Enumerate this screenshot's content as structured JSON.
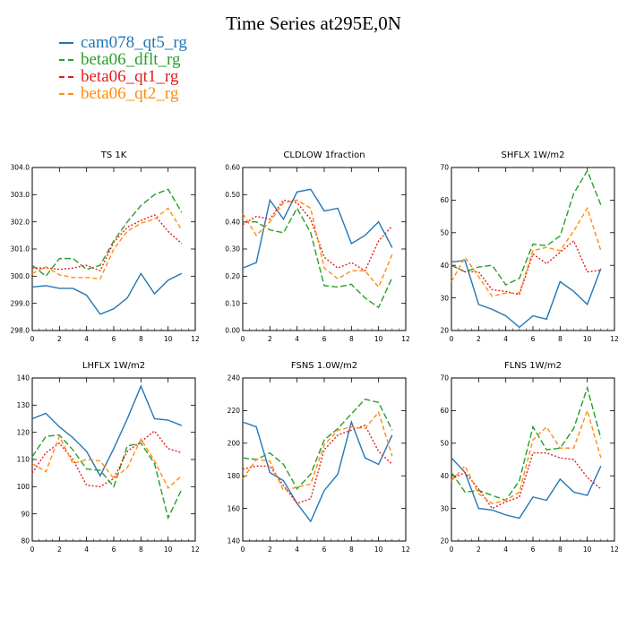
{
  "title": "Time Series at295E,0N",
  "legend": [
    {
      "label": "cam078_qt5_rg",
      "color": "#2277b5",
      "dash": ""
    },
    {
      "label": "beta06_dflt_rg",
      "color": "#2a9e2a",
      "dash": "7,3"
    },
    {
      "label": "beta06_qt1_rg",
      "color": "#e02020",
      "dash": "2,2"
    },
    {
      "label": "beta06_qt2_rg",
      "color": "#ff8c10",
      "dash": "5,3"
    }
  ],
  "chart_data": [
    {
      "type": "line",
      "title": "TS   1K",
      "x": [
        0,
        1,
        2,
        3,
        4,
        5,
        6,
        7,
        8,
        9,
        10,
        11
      ],
      "xlim": [
        0,
        12
      ],
      "xticks": [
        0,
        2,
        4,
        6,
        8,
        10,
        12
      ],
      "ylim": [
        298,
        304
      ],
      "yticks": [
        298.0,
        299.0,
        300.0,
        301.0,
        302.0,
        303.0,
        304.0
      ],
      "ytick_decimals": 1,
      "series": [
        {
          "name": "cam078_qt5_rg",
          "values": [
            299.6,
            299.65,
            299.55,
            299.55,
            299.3,
            298.6,
            298.8,
            299.2,
            300.1,
            299.35,
            299.85,
            300.1
          ]
        },
        {
          "name": "beta06_dflt_rg",
          "values": [
            300.4,
            300.0,
            300.65,
            300.65,
            300.25,
            300.4,
            301.3,
            302.0,
            302.6,
            303.0,
            303.2,
            302.35
          ]
        },
        {
          "name": "beta06_qt1_rg",
          "values": [
            300.3,
            300.3,
            300.25,
            300.3,
            300.4,
            300.2,
            301.25,
            301.8,
            302.05,
            302.25,
            301.65,
            301.2
          ]
        },
        {
          "name": "beta06_qt2_rg",
          "values": [
            300.1,
            300.35,
            300.05,
            299.95,
            299.95,
            299.9,
            301.0,
            301.65,
            301.95,
            302.1,
            302.5,
            301.7
          ]
        }
      ]
    },
    {
      "type": "line",
      "title": "CLDLOW   1fraction",
      "x": [
        0,
        1,
        2,
        3,
        4,
        5,
        6,
        7,
        8,
        9,
        10,
        11
      ],
      "xlim": [
        0,
        12
      ],
      "xticks": [
        0,
        2,
        4,
        6,
        8,
        10,
        12
      ],
      "ylim": [
        0,
        0.6
      ],
      "yticks": [
        0.0,
        0.1,
        0.2,
        0.3,
        0.4,
        0.5,
        0.6
      ],
      "ytick_decimals": 2,
      "series": [
        {
          "name": "cam078_qt5_rg",
          "values": [
            0.23,
            0.25,
            0.48,
            0.41,
            0.51,
            0.52,
            0.44,
            0.45,
            0.32,
            0.35,
            0.4,
            0.305
          ]
        },
        {
          "name": "beta06_dflt_rg",
          "values": [
            0.4,
            0.4,
            0.37,
            0.36,
            0.45,
            0.36,
            0.165,
            0.16,
            0.17,
            0.12,
            0.085,
            0.195
          ]
        },
        {
          "name": "beta06_qt1_rg",
          "values": [
            0.39,
            0.42,
            0.41,
            0.48,
            0.47,
            0.41,
            0.27,
            0.23,
            0.25,
            0.22,
            0.33,
            0.385
          ]
        },
        {
          "name": "beta06_qt2_rg",
          "values": [
            0.43,
            0.35,
            0.4,
            0.47,
            0.48,
            0.45,
            0.23,
            0.19,
            0.22,
            0.22,
            0.16,
            0.28
          ]
        }
      ]
    },
    {
      "type": "line",
      "title": "SHFLX   1W/m2",
      "x": [
        0,
        1,
        2,
        3,
        4,
        5,
        6,
        7,
        8,
        9,
        10,
        11
      ],
      "xlim": [
        0,
        12
      ],
      "xticks": [
        0,
        2,
        4,
        6,
        8,
        10,
        12
      ],
      "ylim": [
        20,
        70
      ],
      "yticks": [
        20,
        30,
        40,
        50,
        60,
        70
      ],
      "ytick_decimals": 0,
      "series": [
        {
          "name": "cam078_qt5_rg",
          "values": [
            41,
            41.5,
            28,
            26.5,
            24.5,
            21,
            24.5,
            23.5,
            35,
            32,
            28,
            39
          ]
        },
        {
          "name": "beta06_dflt_rg",
          "values": [
            40,
            38,
            39.5,
            40,
            34,
            36,
            46.5,
            46,
            49,
            62,
            69,
            58.5
          ]
        },
        {
          "name": "beta06_qt1_rg",
          "values": [
            40,
            38,
            38,
            32.5,
            32,
            31,
            43.5,
            40.5,
            44,
            47.5,
            38,
            38.5
          ]
        },
        {
          "name": "beta06_qt2_rg",
          "values": [
            35,
            42.5,
            36.5,
            30.5,
            31.5,
            31.5,
            44.5,
            45.5,
            44.5,
            50.5,
            57.5,
            44.5
          ]
        }
      ]
    },
    {
      "type": "line",
      "title": "LHFLX   1W/m2",
      "x": [
        0,
        1,
        2,
        3,
        4,
        5,
        6,
        7,
        8,
        9,
        10,
        11
      ],
      "xlim": [
        0,
        12
      ],
      "xticks": [
        0,
        2,
        4,
        6,
        8,
        10,
        12
      ],
      "ylim": [
        80,
        140
      ],
      "yticks": [
        80,
        90,
        100,
        110,
        120,
        130,
        140
      ],
      "ytick_decimals": 0,
      "series": [
        {
          "name": "cam078_qt5_rg",
          "values": [
            125,
            127,
            122,
            118,
            113,
            104,
            114,
            125,
            137,
            125,
            124.5,
            122.5
          ]
        },
        {
          "name": "beta06_dflt_rg",
          "values": [
            111,
            118.5,
            119,
            113.5,
            106.5,
            106,
            100,
            115,
            116,
            108.5,
            88.5,
            99
          ]
        },
        {
          "name": "beta06_qt1_rg",
          "values": [
            105,
            112.5,
            116,
            110,
            100.5,
            100,
            103,
            113,
            116.5,
            120.5,
            114,
            112.5
          ]
        },
        {
          "name": "beta06_qt2_rg",
          "values": [
            108.5,
            105.5,
            118.5,
            108.5,
            110,
            109.5,
            103,
            107,
            117.5,
            109.5,
            99.5,
            104
          ]
        }
      ]
    },
    {
      "type": "line",
      "title": "FSNS   1.0W/m2",
      "x": [
        0,
        1,
        2,
        3,
        4,
        5,
        6,
        7,
        8,
        9,
        10,
        11
      ],
      "xlim": [
        0,
        12
      ],
      "xticks": [
        0,
        2,
        4,
        6,
        8,
        10,
        12
      ],
      "ylim": [
        140,
        240
      ],
      "yticks": [
        140,
        160,
        180,
        200,
        220,
        240
      ],
      "ytick_decimals": 0,
      "series": [
        {
          "name": "cam078_qt5_rg",
          "values": [
            213,
            210,
            182,
            177,
            163,
            152,
            171,
            181,
            213,
            191,
            187,
            205
          ]
        },
        {
          "name": "beta06_dflt_rg",
          "values": [
            191,
            190,
            194,
            187,
            172,
            181,
            202,
            209,
            218,
            227,
            225,
            208
          ]
        },
        {
          "name": "beta06_qt1_rg",
          "values": [
            184,
            186,
            186,
            174,
            163,
            166,
            196,
            205,
            208,
            211,
            195,
            187
          ]
        },
        {
          "name": "beta06_qt2_rg",
          "values": [
            178,
            190,
            189,
            171,
            173,
            175,
            199,
            208,
            210,
            209,
            219,
            192
          ]
        }
      ]
    },
    {
      "type": "line",
      "title": "FLNS   1W/m2",
      "x": [
        0,
        1,
        2,
        3,
        4,
        5,
        6,
        7,
        8,
        9,
        10,
        11
      ],
      "xlim": [
        0,
        12
      ],
      "xticks": [
        0,
        2,
        4,
        6,
        8,
        10,
        12
      ],
      "ylim": [
        20,
        70
      ],
      "yticks": [
        20,
        30,
        40,
        50,
        60,
        70
      ],
      "ytick_decimals": 0,
      "series": [
        {
          "name": "cam078_qt5_rg",
          "values": [
            45.5,
            41,
            30,
            29.5,
            28,
            27,
            33.5,
            32.5,
            39,
            35,
            34,
            43
          ]
        },
        {
          "name": "beta06_dflt_rg",
          "values": [
            41,
            35,
            35.5,
            34,
            32.5,
            38.5,
            55,
            48,
            48.5,
            54.5,
            67,
            51.5
          ]
        },
        {
          "name": "beta06_qt1_rg",
          "values": [
            39,
            41,
            36,
            30,
            32,
            33.5,
            47,
            47,
            45.5,
            45,
            39.5,
            36
          ]
        },
        {
          "name": "beta06_qt2_rg",
          "values": [
            38.5,
            43,
            34.5,
            31.5,
            32.5,
            35,
            51,
            55,
            48.5,
            48.5,
            60,
            45.5
          ]
        }
      ]
    }
  ]
}
